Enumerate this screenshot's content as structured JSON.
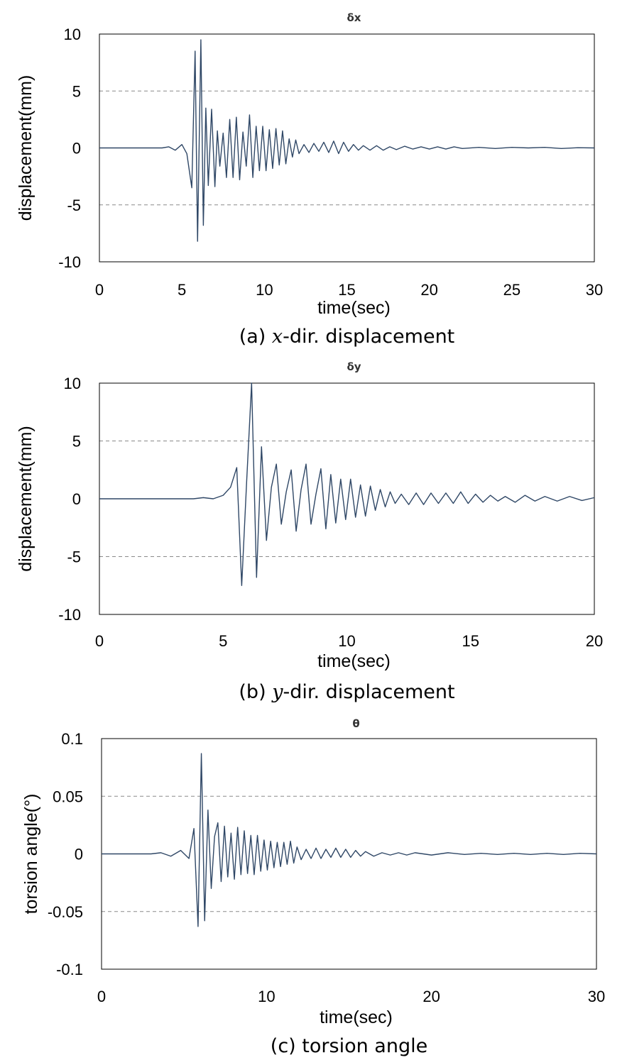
{
  "chart_data": [
    {
      "type": "line",
      "title": "δx",
      "xlabel": "time(sec)",
      "ylabel": "displacement(mm)",
      "caption_prefix": "(a) ",
      "caption_var": "x",
      "caption_suffix": "-dir. displacement",
      "xlim": [
        0,
        30
      ],
      "ylim": [
        -10,
        10
      ],
      "xticks": [
        0,
        5,
        10,
        15,
        20,
        25,
        30
      ],
      "yticks": [
        10,
        5,
        0,
        -5,
        -10
      ],
      "xtick_labels": [
        "0",
        "5",
        "10",
        "15",
        "20",
        "25",
        "30"
      ],
      "ytick_labels": [
        "10",
        "5",
        "0",
        "-5",
        "-10"
      ],
      "grid": "dashed horizontal at ±5",
      "color": "#2f4766",
      "series": [
        {
          "x": [
            0,
            3.8,
            4.2,
            4.6,
            5.0,
            5.3,
            5.6,
            5.8,
            5.95,
            6.15,
            6.3,
            6.45,
            6.6,
            6.8,
            7.0,
            7.15,
            7.3,
            7.5,
            7.7,
            7.9,
            8.1,
            8.3,
            8.5,
            8.7,
            8.9,
            9.1,
            9.3,
            9.5,
            9.7,
            9.9,
            10.1,
            10.3,
            10.5,
            10.7,
            10.9,
            11.1,
            11.3,
            11.5,
            11.7,
            11.9,
            12.1,
            12.4,
            12.7,
            13.0,
            13.3,
            13.6,
            13.9,
            14.2,
            14.5,
            14.8,
            15.1,
            15.4,
            15.7,
            16.0,
            16.4,
            16.8,
            17.2,
            17.6,
            18.0,
            18.5,
            19.0,
            19.5,
            20.0,
            20.5,
            21.0,
            21.5,
            22.0,
            23.0,
            24.0,
            25.0,
            26.0,
            27.0,
            28.0,
            29.0,
            30.0
          ],
          "y": [
            0,
            0,
            0.1,
            -0.2,
            0.3,
            -0.5,
            -3.5,
            8.5,
            -8.2,
            9.5,
            -6.8,
            3.5,
            -3.3,
            3.4,
            -3.4,
            1.5,
            -1.6,
            1.3,
            -2.6,
            2.5,
            -2.6,
            2.7,
            -2.8,
            1.4,
            -1.6,
            2.9,
            -2.6,
            1.9,
            -2.0,
            1.9,
            -2.0,
            1.6,
            -1.8,
            1.7,
            -1.5,
            1.5,
            -1.4,
            0.8,
            -0.8,
            0.7,
            -0.5,
            0.3,
            -0.4,
            0.4,
            -0.3,
            0.5,
            -0.4,
            0.6,
            -0.5,
            0.5,
            -0.3,
            0.3,
            -0.2,
            0.2,
            -0.2,
            0.2,
            -0.2,
            0.1,
            -0.15,
            0.15,
            -0.1,
            0.1,
            -0.1,
            0.1,
            -0.1,
            0.1,
            -0.05,
            0.05,
            -0.05,
            0.05,
            0,
            0.05,
            -0.05,
            0.02,
            0
          ]
        }
      ]
    },
    {
      "type": "line",
      "title": "δy",
      "xlabel": "time(sec)",
      "ylabel": "displacement(mm)",
      "caption_prefix": "(b) ",
      "caption_var": "y",
      "caption_suffix": "-dir. displacement",
      "xlim": [
        0,
        20
      ],
      "ylim": [
        -10,
        10
      ],
      "xticks": [
        0,
        5,
        10,
        15,
        20
      ],
      "yticks": [
        10,
        5,
        0,
        -5,
        -10
      ],
      "xtick_labels": [
        "0",
        "5",
        "10",
        "15",
        "20"
      ],
      "ytick_labels": [
        "10",
        "5",
        "0",
        "-5",
        "-10"
      ],
      "grid": "dashed horizontal at ±5",
      "color": "#2f4766",
      "series": [
        {
          "x": [
            0,
            3.8,
            4.2,
            4.6,
            5.0,
            5.3,
            5.55,
            5.75,
            5.95,
            6.15,
            6.35,
            6.55,
            6.75,
            6.95,
            7.15,
            7.35,
            7.55,
            7.75,
            7.95,
            8.15,
            8.35,
            8.55,
            8.75,
            8.95,
            9.15,
            9.35,
            9.55,
            9.75,
            9.95,
            10.15,
            10.35,
            10.55,
            10.75,
            10.95,
            11.15,
            11.35,
            11.55,
            11.75,
            11.95,
            12.2,
            12.5,
            12.8,
            13.1,
            13.4,
            13.7,
            14.0,
            14.3,
            14.6,
            14.9,
            15.2,
            15.5,
            15.8,
            16.1,
            16.4,
            16.8,
            17.2,
            17.6,
            18.0,
            18.5,
            19.0,
            19.5,
            20.0
          ],
          "y": [
            0,
            0,
            0.1,
            0.0,
            0.3,
            1.0,
            2.7,
            -7.5,
            1.5,
            10.0,
            -6.8,
            4.5,
            -3.6,
            1.0,
            3.0,
            -2.2,
            0.6,
            2.5,
            -2.8,
            0.8,
            3.0,
            -2.2,
            0.4,
            2.6,
            -2.6,
            2.1,
            -2.1,
            1.7,
            -1.8,
            1.7,
            -1.6,
            1.2,
            -1.5,
            1.1,
            -1.0,
            0.8,
            -0.7,
            0.6,
            -0.4,
            0.4,
            -0.5,
            0.5,
            -0.5,
            0.5,
            -0.4,
            0.5,
            -0.4,
            0.6,
            -0.4,
            0.4,
            -0.3,
            0.3,
            -0.2,
            0.2,
            -0.3,
            0.3,
            -0.2,
            0.2,
            -0.2,
            0.2,
            -0.15,
            0.1
          ]
        }
      ]
    },
    {
      "type": "line",
      "title": "θ",
      "xlabel": "time(sec)",
      "ylabel": "torsion angle(°)",
      "caption_prefix": "(c) torsion angle",
      "caption_var": "",
      "caption_suffix": "",
      "xlim": [
        0,
        30
      ],
      "ylim": [
        -0.1,
        0.1
      ],
      "xticks": [
        0,
        10,
        20,
        30
      ],
      "yticks": [
        0.1,
        0.05,
        0,
        -0.05,
        -0.1
      ],
      "xtick_labels": [
        "0",
        "10",
        "20",
        "30"
      ],
      "ytick_labels": [
        "0.1",
        "0.05",
        "0",
        "-0.05",
        "-0.1"
      ],
      "grid": "dashed horizontal at ±0.05",
      "color": "#2f4766",
      "series": [
        {
          "x": [
            0,
            3.0,
            3.6,
            4.2,
            4.8,
            5.3,
            5.6,
            5.85,
            6.05,
            6.25,
            6.45,
            6.65,
            6.85,
            7.05,
            7.25,
            7.45,
            7.65,
            7.85,
            8.05,
            8.25,
            8.45,
            8.65,
            8.85,
            9.05,
            9.25,
            9.45,
            9.65,
            9.85,
            10.05,
            10.25,
            10.45,
            10.65,
            10.85,
            11.05,
            11.25,
            11.45,
            11.65,
            11.85,
            12.1,
            12.4,
            12.7,
            13.0,
            13.3,
            13.6,
            13.9,
            14.2,
            14.5,
            14.8,
            15.1,
            15.4,
            15.7,
            16.0,
            16.5,
            17.0,
            17.5,
            18.0,
            18.5,
            19.0,
            20.0,
            21.0,
            22.0,
            23.0,
            24.0,
            25.0,
            26.0,
            27.0,
            28.0,
            29.0,
            30.0
          ],
          "y": [
            0,
            0,
            0.001,
            -0.002,
            0.003,
            -0.004,
            0.022,
            -0.063,
            0.087,
            -0.058,
            0.038,
            -0.03,
            0.015,
            0.027,
            -0.024,
            0.024,
            -0.02,
            0.018,
            -0.022,
            0.023,
            -0.018,
            0.02,
            -0.017,
            0.016,
            -0.018,
            0.016,
            -0.015,
            0.012,
            -0.014,
            0.011,
            -0.012,
            0.01,
            -0.011,
            0.01,
            -0.009,
            0.011,
            -0.008,
            0.006,
            -0.005,
            0.004,
            -0.004,
            0.005,
            -0.004,
            0.004,
            -0.003,
            0.005,
            -0.003,
            0.004,
            -0.003,
            0.003,
            -0.002,
            0.002,
            -0.002,
            0.001,
            -0.001,
            0.001,
            -0.001,
            0.001,
            -0.001,
            0.001,
            -0.0005,
            0.0005,
            -0.0005,
            0.0005,
            -0.0005,
            0.0005,
            -0.0005,
            0.0005,
            0
          ]
        }
      ]
    }
  ]
}
